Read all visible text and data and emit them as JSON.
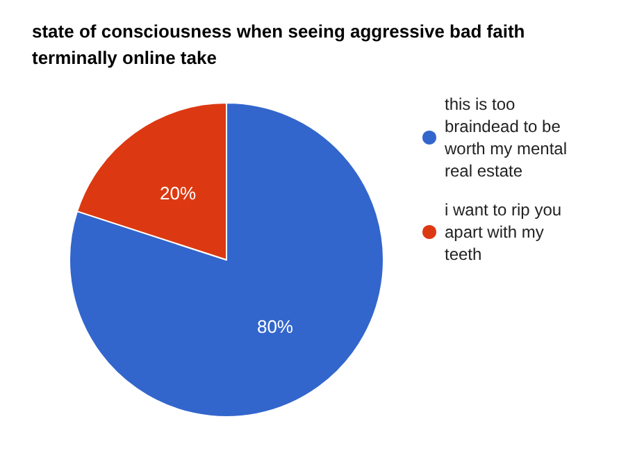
{
  "chart_data": {
    "type": "pie",
    "title": "state of consciousness when seeing aggressive bad faith terminally online take",
    "categories": [
      "this is too braindead to be worth my mental real estate",
      "i want to rip you apart with my teeth"
    ],
    "values": [
      80,
      20
    ],
    "colors": [
      "#3366cc",
      "#dc3912"
    ],
    "legend": "right",
    "value_labels": [
      "80%",
      "20%"
    ]
  }
}
